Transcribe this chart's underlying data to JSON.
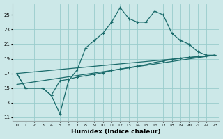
{
  "xlabel": "Humidex (Indice chaleur)",
  "bg_color": "#cce8e8",
  "grid_color": "#99cccc",
  "line_color": "#1a6b6b",
  "xlim": [
    -0.5,
    23.5
  ],
  "ylim": [
    10.5,
    26.5
  ],
  "yticks": [
    11,
    13,
    15,
    17,
    19,
    21,
    23,
    25
  ],
  "xticks": [
    0,
    1,
    2,
    3,
    4,
    5,
    6,
    7,
    8,
    9,
    10,
    11,
    12,
    13,
    14,
    15,
    16,
    17,
    18,
    19,
    20,
    21,
    22,
    23
  ],
  "series1_x": [
    0,
    1,
    3,
    4,
    5,
    6,
    7,
    8,
    9,
    10,
    11,
    12,
    13,
    14,
    15,
    16,
    17,
    18,
    19,
    20,
    21,
    22,
    23
  ],
  "series1_y": [
    17,
    15,
    15,
    14,
    11.5,
    16,
    17.5,
    20.5,
    21.5,
    22.5,
    24,
    26,
    24.5,
    24,
    24,
    25.5,
    25,
    22.5,
    21.5,
    21,
    20,
    19.5,
    19.5
  ],
  "series2_x": [
    0,
    1,
    3,
    4,
    5,
    6,
    7,
    8,
    9,
    10,
    11,
    12,
    13,
    14,
    15,
    16,
    17,
    18,
    19,
    20,
    21,
    22,
    23
  ],
  "series2_y": [
    17,
    15,
    15,
    14,
    16,
    16.2,
    16.5,
    16.7,
    16.9,
    17.1,
    17.4,
    17.6,
    17.8,
    18.0,
    18.2,
    18.5,
    18.7,
    18.9,
    19.1,
    19.2,
    19.3,
    19.4,
    19.5
  ],
  "series3_x": [
    0,
    23
  ],
  "series3_y": [
    17,
    19.5
  ],
  "series4_x": [
    0,
    23
  ],
  "series4_y": [
    15.5,
    19.5
  ]
}
